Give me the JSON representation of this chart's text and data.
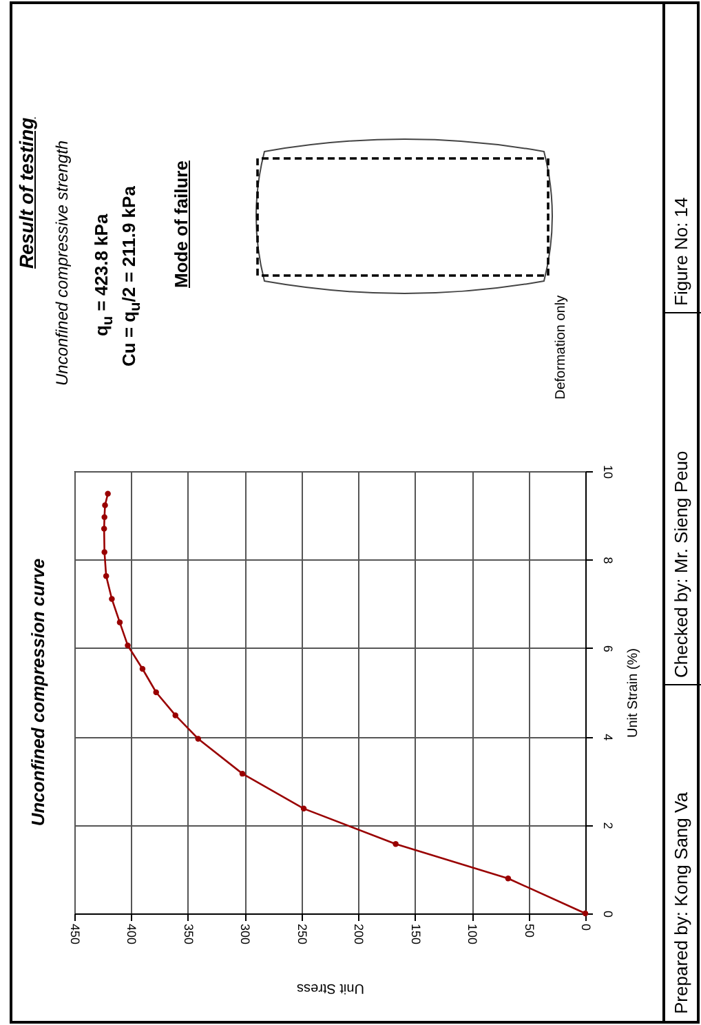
{
  "chart_data": {
    "type": "line",
    "title": "Unconfined compression curve",
    "xlabel": "Unit Stress",
    "ylabel": "Unit Strain (%)",
    "x": [
      0,
      68,
      167,
      248,
      302,
      341,
      361,
      378,
      390,
      403,
      410,
      417,
      422,
      423.5,
      423.8,
      423.5,
      423,
      420.5
    ],
    "series": [
      {
        "color": "#990000",
        "values": [
          0,
          0.79,
          1.57,
          2.37,
          3.16,
          3.95,
          4.48,
          5.0,
          5.53,
          6.06,
          6.58,
          7.11,
          7.63,
          8.17,
          8.7,
          8.96,
          9.23,
          9.49
        ]
      }
    ],
    "xlim": [
      450,
      0
    ],
    "xticks": [
      450,
      400,
      350,
      300,
      250,
      200,
      150,
      100,
      50,
      0
    ],
    "ylim": [
      0,
      10
    ],
    "yticks": [
      0,
      2,
      4,
      6,
      8,
      10
    ],
    "grid": true,
    "marker": "circle",
    "line_style": "solid",
    "annotations": [
      "Result of testing",
      "Unconfined compressive strength",
      "q$_{u}$ =   423.8  kPa",
      "Cu = q$_{u}$/2 =   211.9  kPa",
      "Mode of failure",
      "Deformation only",
      "Prepared by:  Kong Sang Va",
      "Checked by:  Mr. Sieng Peuo",
      "Figure No:  14"
    ]
  }
}
